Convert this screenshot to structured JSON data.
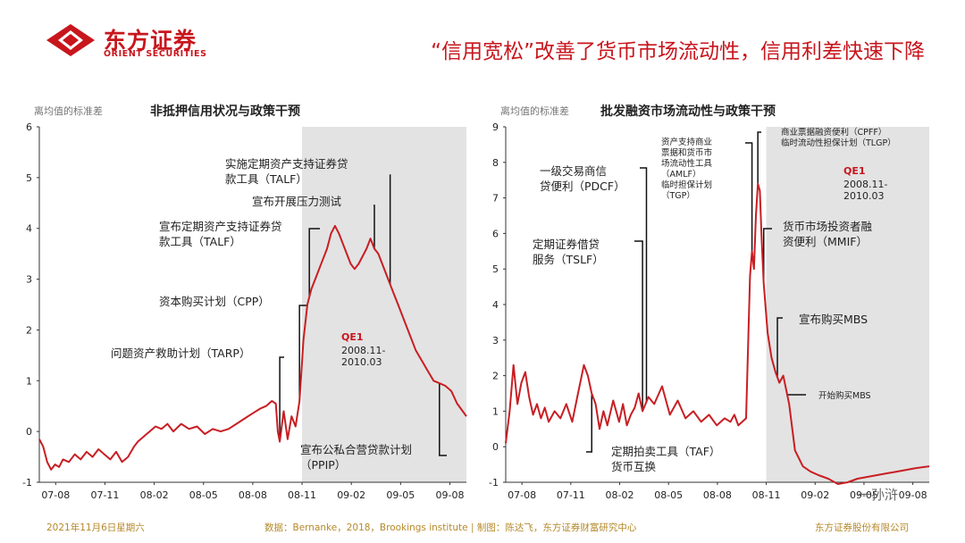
{
  "header": {
    "brand_cn": "东方证券",
    "brand_en": "ORIENT SECURITIES",
    "title": "“信用宽松”改善了货币市场流动性，信用利差快速下降"
  },
  "colors": {
    "accent": "#c8161d",
    "line": "#c81e23",
    "shade": "#e3e3e3",
    "footer": "#b5892b"
  },
  "footer": {
    "date": "2021年11月6日星期六",
    "source": "数据：Bernanke，2018，Brookings institute | 制图：陈达飞，东方证券财富研究中心",
    "company": "东方证券股份有限公司"
  },
  "watermark": "一孙浒",
  "chart_data": [
    {
      "type": "line",
      "title": "非抵押信用状况与政策干预",
      "ylabel": "离均值的标准差",
      "ylim": [
        -1,
        6
      ],
      "yticks": [
        -1,
        0,
        1,
        2,
        3,
        4,
        5,
        6
      ],
      "xlim": [
        2007.5,
        2009.667
      ],
      "x_tick_labels": [
        "07-08",
        "07-11",
        "08-02",
        "08-05",
        "08-08",
        "08-11",
        "09-02",
        "09-05",
        "09-08"
      ],
      "x_tick_values": [
        2007.583,
        2007.833,
        2008.083,
        2008.333,
        2008.583,
        2008.833,
        2009.083,
        2009.333,
        2009.583
      ],
      "shade": {
        "from": 2008.833,
        "to": 2009.667,
        "label": "QE1",
        "sublabel": "2008.11-\n2010.03"
      },
      "series": [
        {
          "x": [
            2007.5,
            2007.52,
            2007.54,
            2007.56,
            2007.58,
            2007.6,
            2007.62,
            2007.65,
            2007.68,
            2007.71,
            2007.74,
            2007.77,
            2007.8,
            2007.83,
            2007.86,
            2007.89,
            2007.92,
            2007.95,
            2007.98,
            2008.0,
            2008.03,
            2008.06,
            2008.09,
            2008.12,
            2008.15,
            2008.18,
            2008.22,
            2008.26,
            2008.3,
            2008.34,
            2008.38,
            2008.42,
            2008.46,
            2008.5,
            2008.54,
            2008.58,
            2008.62,
            2008.65,
            2008.68,
            2008.7,
            2008.71,
            2008.72,
            2008.74,
            2008.76,
            2008.78,
            2008.8,
            2008.82,
            2008.84,
            2008.86,
            2008.88,
            2008.9,
            2008.92,
            2008.94,
            2008.96,
            2008.98,
            2009.0,
            2009.02,
            2009.04,
            2009.06,
            2009.08,
            2009.1,
            2009.12,
            2009.14,
            2009.16,
            2009.18,
            2009.2,
            2009.22,
            2009.24,
            2009.26,
            2009.28,
            2009.3,
            2009.32,
            2009.35,
            2009.38,
            2009.41,
            2009.44,
            2009.47,
            2009.5,
            2009.53,
            2009.56,
            2009.59,
            2009.62,
            2009.667
          ],
          "y": [
            -0.15,
            -0.3,
            -0.6,
            -0.75,
            -0.65,
            -0.7,
            -0.55,
            -0.6,
            -0.45,
            -0.55,
            -0.4,
            -0.5,
            -0.35,
            -0.45,
            -0.55,
            -0.4,
            -0.6,
            -0.5,
            -0.3,
            -0.2,
            -0.1,
            0.0,
            0.1,
            0.05,
            0.15,
            0.0,
            0.15,
            0.05,
            0.1,
            -0.05,
            0.05,
            0.0,
            0.05,
            0.15,
            0.25,
            0.35,
            0.45,
            0.5,
            0.6,
            0.55,
            0.0,
            -0.2,
            0.4,
            -0.15,
            0.3,
            0.1,
            0.6,
            1.8,
            2.5,
            2.8,
            3.0,
            3.2,
            3.4,
            3.6,
            3.9,
            4.05,
            3.9,
            3.7,
            3.5,
            3.3,
            3.2,
            3.3,
            3.45,
            3.6,
            3.8,
            3.6,
            3.5,
            3.3,
            3.1,
            2.9,
            2.7,
            2.5,
            2.2,
            1.9,
            1.6,
            1.4,
            1.2,
            1.0,
            0.95,
            0.9,
            0.8,
            0.55,
            0.3
          ]
        }
      ],
      "annotations": [
        {
          "text": "实施定期资产支持证券贷\n款工具（TALF）",
          "x": 2009.28
        },
        {
          "text": "宣布开展压力测试",
          "x": 2009.2
        },
        {
          "text": "宣布定期资产支持证券贷\n款工具（TALF）",
          "x": 2008.87
        },
        {
          "text": "资本购买计划（CPP）",
          "x": 2008.82
        },
        {
          "text": "问题资产救助计划（TARP）",
          "x": 2008.72
        },
        {
          "text": "宣布公私合营贷款计划\n（PPIP）",
          "x": 2009.53
        }
      ]
    },
    {
      "type": "line",
      "title": "批发融资市场流动性与政策干预",
      "ylabel": "离均值的标准差",
      "ylim": [
        -1,
        9
      ],
      "yticks": [
        -1,
        0,
        1,
        2,
        3,
        4,
        5,
        6,
        7,
        8,
        9
      ],
      "xlim": [
        2007.5,
        2009.667
      ],
      "x_tick_labels": [
        "07-08",
        "07-11",
        "08-02",
        "08-05",
        "08-08",
        "08-11",
        "09-02",
        "09-05",
        "09-08"
      ],
      "x_tick_values": [
        2007.583,
        2007.833,
        2008.083,
        2008.333,
        2008.583,
        2008.833,
        2009.083,
        2009.333,
        2009.583
      ],
      "shade": {
        "from": 2008.833,
        "to": 2009.667,
        "label": "QE1",
        "sublabel": "2008.11-\n2010.03"
      },
      "series": [
        {
          "x": [
            2007.5,
            2007.52,
            2007.54,
            2007.56,
            2007.58,
            2007.6,
            2007.62,
            2007.64,
            2007.66,
            2007.68,
            2007.7,
            2007.72,
            2007.75,
            2007.78,
            2007.81,
            2007.84,
            2007.87,
            2007.9,
            2007.92,
            2007.94,
            2007.96,
            2007.98,
            2008.0,
            2008.02,
            2008.05,
            2008.08,
            2008.1,
            2008.12,
            2008.14,
            2008.16,
            2008.18,
            2008.2,
            2008.23,
            2008.26,
            2008.3,
            2008.34,
            2008.38,
            2008.42,
            2008.46,
            2008.5,
            2008.54,
            2008.58,
            2008.62,
            2008.65,
            2008.67,
            2008.69,
            2008.71,
            2008.73,
            2008.75,
            2008.76,
            2008.77,
            2008.78,
            2008.79,
            2008.8,
            2008.81,
            2008.82,
            2008.84,
            2008.86,
            2008.88,
            2008.9,
            2008.92,
            2008.95,
            2008.98,
            2009.02,
            2009.06,
            2009.1,
            2009.15,
            2009.2,
            2009.25,
            2009.3,
            2009.35,
            2009.4,
            2009.45,
            2009.5,
            2009.55,
            2009.6,
            2009.667
          ],
          "y": [
            0.1,
            1.0,
            2.3,
            1.2,
            1.8,
            2.1,
            1.4,
            0.9,
            1.2,
            0.8,
            1.1,
            0.7,
            1.0,
            0.8,
            1.2,
            0.7,
            1.5,
            2.3,
            2.0,
            1.5,
            1.2,
            0.5,
            1.0,
            0.6,
            1.3,
            0.7,
            1.2,
            0.6,
            0.9,
            1.1,
            1.5,
            1.0,
            1.4,
            1.2,
            1.7,
            0.9,
            1.3,
            0.8,
            1.0,
            0.7,
            0.9,
            0.6,
            0.8,
            0.7,
            0.9,
            0.6,
            0.7,
            0.8,
            4.8,
            5.5,
            5.0,
            6.5,
            7.4,
            7.2,
            5.8,
            4.6,
            3.2,
            2.5,
            2.1,
            1.8,
            2.0,
            1.2,
            -0.1,
            -0.55,
            -0.7,
            -0.8,
            -0.9,
            -1.05,
            -1.0,
            -0.9,
            -0.85,
            -0.8,
            -0.75,
            -0.7,
            -0.65,
            -0.6,
            -0.55
          ]
        }
      ],
      "annotations": [
        {
          "text": "商业票据融资便利（CPFF）\n临时流动性担保计划（TLGP）",
          "x": 2008.79
        },
        {
          "text": "资产支持商业\n票据和货币市\n场流动性工具\n（AMLF）\n临时担保计划\n（TGP）",
          "x": 2008.76
        },
        {
          "text": "一级交易商信\n贷便利（PDCF）",
          "x": 2008.22
        },
        {
          "text": "定期证券借贷\n服务（TSLF）",
          "x": 2008.2
        },
        {
          "text": "货币市场投资者融\n资便利（MMIF）",
          "x": 2008.82
        },
        {
          "text": "宣布购买MBS",
          "x": 2008.89
        },
        {
          "text": "开始购买MBS",
          "x": 2008.94
        },
        {
          "text": "定期拍卖工具（TAF）\n货币互换",
          "x": 2007.94
        }
      ]
    }
  ]
}
